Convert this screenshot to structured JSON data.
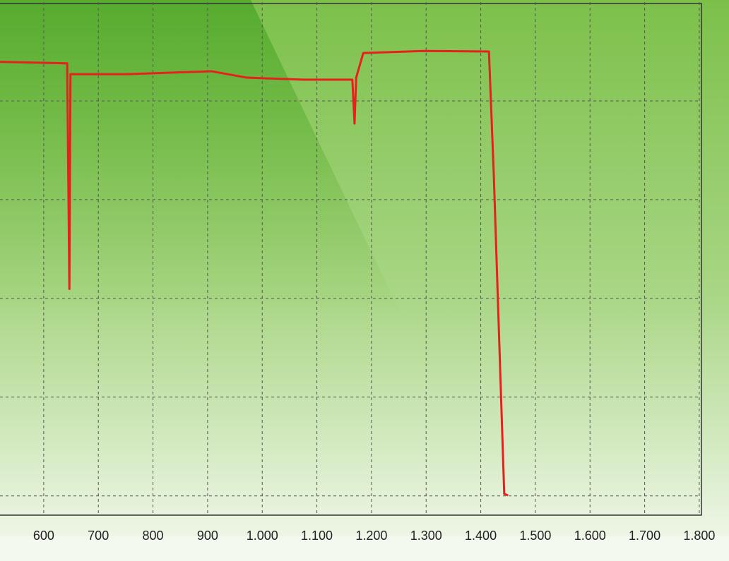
{
  "chart_data": {
    "type": "line",
    "x": [
      520,
      643,
      647,
      649,
      752,
      907,
      972,
      1075,
      1165,
      1169,
      1172,
      1185,
      1295,
      1415,
      1424,
      1443,
      1450
    ],
    "series": [
      {
        "color": "#e8201c",
        "values": [
          87.9,
          87.6,
          41.9,
          85.4,
          85.4,
          86.0,
          84.7,
          84.3,
          84.3,
          75.4,
          84.7,
          89.7,
          90.1,
          90.0,
          64.7,
          0.4,
          0.1
        ]
      }
    ],
    "xlim": [
      520,
      1804
    ],
    "xticks": [
      500,
      600,
      700,
      800,
      900,
      {
        "value": 1000,
        "label": "1.000"
      },
      {
        "value": 1100,
        "label": "1.100"
      },
      {
        "value": 1200,
        "label": "1.200"
      },
      {
        "value": 1300,
        "label": "1.300"
      },
      {
        "value": 1400,
        "label": "1.400"
      },
      {
        "value": 1500,
        "label": "1.500"
      },
      {
        "value": 1600,
        "label": "1.600"
      },
      {
        "value": 1700,
        "label": "1.700"
      },
      {
        "value": 1800,
        "label": "1.800"
      }
    ],
    "ylim": [
      -3.9,
      100
    ],
    "yticks": [
      0,
      20,
      40,
      60,
      80
    ],
    "grid": true
  }
}
